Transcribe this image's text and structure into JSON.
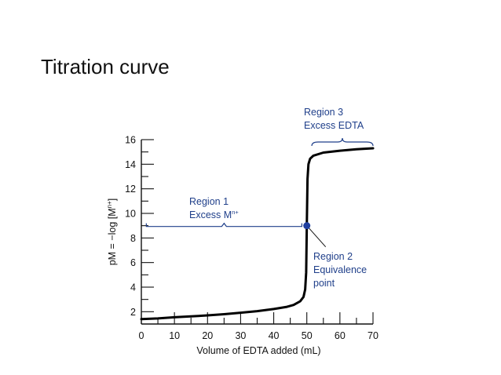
{
  "slide": {
    "title": "Titration curve"
  },
  "chart_data": {
    "type": "line",
    "xlabel": "Volume of EDTA added (mL)",
    "ylabel": "pM = −log [M",
    "ylabel_sup": "n+",
    "ylabel_end": "]",
    "xlim": [
      0,
      70
    ],
    "ylim": [
      1,
      16
    ],
    "x_ticks": [
      0,
      10,
      20,
      30,
      40,
      50,
      60,
      70
    ],
    "y_ticks": [
      2,
      4,
      6,
      8,
      10,
      12,
      14,
      16
    ],
    "series": [
      {
        "color": "#000000",
        "x": [
          0,
          5,
          10,
          15,
          20,
          25,
          30,
          35,
          40,
          44,
          46,
          48,
          49,
          49.5,
          49.8,
          50,
          50.2,
          50.5,
          51,
          52,
          55,
          60,
          65,
          70
        ],
        "y": [
          1.4,
          1.45,
          1.55,
          1.62,
          1.7,
          1.8,
          1.92,
          2.05,
          2.22,
          2.4,
          2.55,
          2.85,
          3.2,
          3.8,
          5.2,
          9.0,
          12.8,
          14.0,
          14.45,
          14.7,
          14.95,
          15.1,
          15.22,
          15.3
        ]
      }
    ],
    "equivalence_point": {
      "x": 50,
      "y": 9.0,
      "color": "#1f3fa0"
    },
    "annotations": {
      "region1": {
        "line1": "Region 1",
        "line2": "Excess M",
        "sup": "n+"
      },
      "region2": {
        "line1": "Region 2",
        "line2": "Equivalence",
        "line3": "point"
      },
      "region3": {
        "line1": "Region 3",
        "line2": "Excess EDTA"
      }
    },
    "annotation_color": "#1f3f8a",
    "grid": false
  }
}
